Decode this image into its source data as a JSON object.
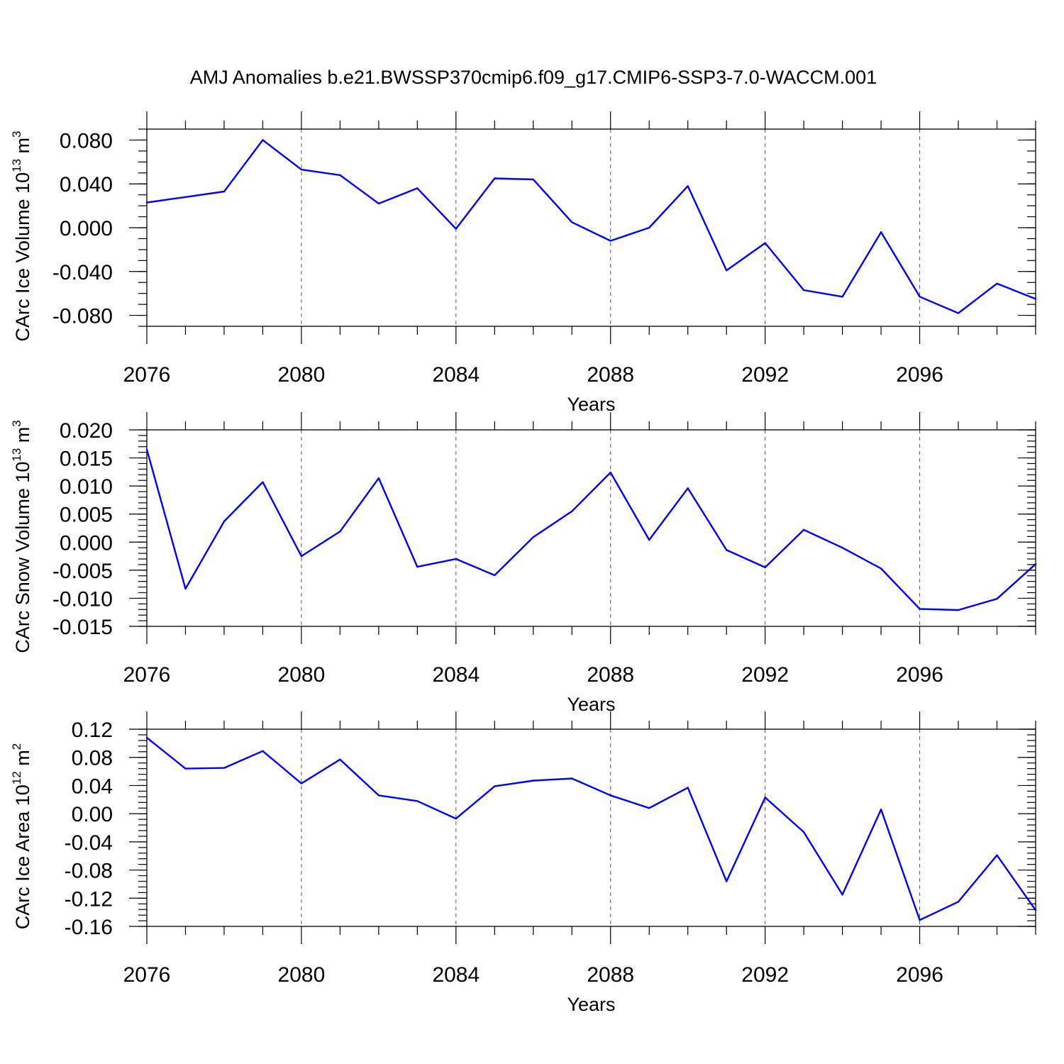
{
  "title": "AMJ Anomalies b.e21.BWSSP370cmip6.f09_g17.CMIP6-SSP3-7.0-WACCM.001",
  "colors": {
    "series": "#0000ff",
    "axes": "#000000",
    "grid": "#555555"
  },
  "chart_data": [
    {
      "type": "line",
      "ylabel": "CArc Ice Volume 10",
      "ylabel_sup1": "13",
      "ylabel_unit": " m",
      "ylabel_sup2": "3",
      "xlabel": "Years",
      "xlim": [
        2076,
        2099
      ],
      "ylim": [
        -0.09,
        0.09
      ],
      "x_ticks": [
        2076,
        2080,
        2084,
        2088,
        2092,
        2096
      ],
      "y_ticks": [
        "0.080",
        "0.040",
        "0.000",
        "-0.040",
        "-0.080"
      ],
      "y_tick_values": [
        0.08,
        0.04,
        0.0,
        -0.04,
        -0.08
      ],
      "y_minor_step": 0.01,
      "grid": "vertical dashed at major x ticks",
      "x": [
        2076,
        2077,
        2078,
        2079,
        2080,
        2081,
        2082,
        2083,
        2084,
        2085,
        2086,
        2087,
        2088,
        2089,
        2090,
        2091,
        2092,
        2093,
        2094,
        2095,
        2096,
        2097,
        2098,
        2099
      ],
      "values": [
        0.023,
        0.028,
        0.033,
        0.08,
        0.053,
        0.048,
        0.022,
        0.036,
        -0.001,
        0.045,
        0.044,
        0.005,
        -0.012,
        0.0,
        0.038,
        -0.039,
        -0.014,
        -0.057,
        -0.063,
        -0.004,
        -0.063,
        -0.078,
        -0.051,
        -0.065
      ]
    },
    {
      "type": "line",
      "ylabel": "CArc Snow Volume 10",
      "ylabel_sup1": "13",
      "ylabel_unit": " m",
      "ylabel_sup2": "3",
      "xlabel": "Years",
      "xlim": [
        2076,
        2099
      ],
      "ylim": [
        -0.015,
        0.02
      ],
      "x_ticks": [
        2076,
        2080,
        2084,
        2088,
        2092,
        2096
      ],
      "y_ticks": [
        "0.020",
        "0.015",
        "0.010",
        "0.005",
        "0.000",
        "-0.005",
        "-0.010",
        "-0.015"
      ],
      "y_tick_values": [
        0.02,
        0.015,
        0.01,
        0.005,
        0.0,
        -0.005,
        -0.01,
        -0.015
      ],
      "y_minor_step": 0.001,
      "grid": "vertical dashed at major x ticks",
      "x": [
        2076,
        2077,
        2078,
        2079,
        2080,
        2081,
        2082,
        2083,
        2084,
        2085,
        2086,
        2087,
        2088,
        2089,
        2090,
        2091,
        2092,
        2093,
        2094,
        2095,
        2096,
        2097,
        2098,
        2099
      ],
      "values": [
        0.0165,
        -0.0083,
        0.0037,
        0.0107,
        -0.0025,
        0.0019,
        0.0114,
        -0.0044,
        -0.003,
        -0.0059,
        0.0009,
        0.0055,
        0.0124,
        0.0004,
        0.0096,
        -0.0014,
        -0.0045,
        0.0022,
        -0.001,
        -0.0047,
        -0.0119,
        -0.0121,
        -0.0101,
        -0.0039
      ]
    },
    {
      "type": "line",
      "ylabel": "CArc Ice Area 10",
      "ylabel_sup1": "12",
      "ylabel_unit": " m",
      "ylabel_sup2": "2",
      "xlabel": "Years",
      "xlim": [
        2076,
        2099
      ],
      "ylim": [
        -0.16,
        0.12
      ],
      "x_ticks": [
        2076,
        2080,
        2084,
        2088,
        2092,
        2096
      ],
      "y_ticks": [
        "0.12",
        "0.08",
        "0.04",
        "0.00",
        "-0.04",
        "-0.08",
        "-0.12",
        "-0.16"
      ],
      "y_tick_values": [
        0.12,
        0.08,
        0.04,
        0.0,
        -0.04,
        -0.08,
        -0.12,
        -0.16
      ],
      "y_minor_step": 0.008,
      "grid": "vertical dashed at major x ticks",
      "x": [
        2076,
        2077,
        2078,
        2079,
        2080,
        2081,
        2082,
        2083,
        2084,
        2085,
        2086,
        2087,
        2088,
        2089,
        2090,
        2091,
        2092,
        2093,
        2094,
        2095,
        2096,
        2097,
        2098,
        2099
      ],
      "values": [
        0.108,
        0.064,
        0.065,
        0.089,
        0.043,
        0.077,
        0.026,
        0.018,
        -0.007,
        0.039,
        0.047,
        0.05,
        0.026,
        0.008,
        0.037,
        -0.096,
        0.023,
        -0.026,
        -0.115,
        0.006,
        -0.151,
        -0.125,
        -0.059,
        -0.137
      ]
    }
  ]
}
